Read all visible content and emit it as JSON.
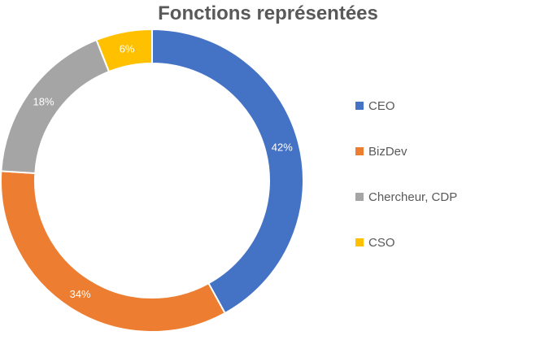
{
  "chart_data": {
    "type": "pie",
    "variant": "donut",
    "title": "Fonctions représentées",
    "categories": [
      "CEO",
      "BizDev",
      "Chercheur, CDP",
      "CSO"
    ],
    "values": [
      42,
      34,
      18,
      6
    ],
    "data_labels": [
      "42%",
      "34%",
      "18%",
      "6%"
    ],
    "unit": "%",
    "colors": [
      "#4472C4",
      "#ED7D31",
      "#A5A5A5",
      "#FFC000"
    ],
    "legend_position": "right",
    "start_angle": "12 o'clock",
    "direction": "clockwise"
  }
}
